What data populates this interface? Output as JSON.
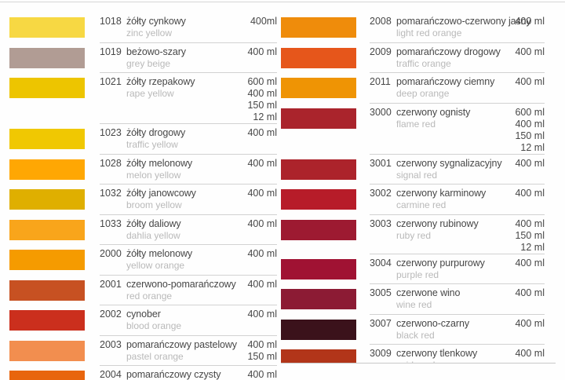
{
  "colors": {
    "divider": "#d2d2d2",
    "top_line": "#d6d6d6",
    "bottom_line": "#c8c8c8",
    "text_dark": "#474747",
    "text_light": "#b9b9b9"
  },
  "left_rows": [
    {
      "code": "1018",
      "name_pl": "żółty cynkowy",
      "name_en": "zinc yellow",
      "volumes": [
        "400ml"
      ],
      "swatch": "#F7D843"
    },
    {
      "code": "1019",
      "name_pl": "beżowo-szary",
      "name_en": "grey beige",
      "volumes": [
        "400 ml"
      ],
      "swatch": "#B19C94"
    },
    {
      "code": "1021",
      "name_pl": "żółty rzepakowy",
      "name_en": "rape yellow",
      "volumes": [
        "600 ml",
        "400 ml",
        "150 ml",
        "12 ml"
      ],
      "swatch": "#EDC500"
    },
    {
      "code": "1023",
      "name_pl": "żółty drogowy",
      "name_en": "traffic yellow",
      "volumes": [
        "400 ml"
      ],
      "swatch": "#F0C802"
    },
    {
      "code": "1028",
      "name_pl": "żółty melonowy",
      "name_en": "melon yellow",
      "volumes": [
        "400 ml"
      ],
      "swatch": "#FFA703"
    },
    {
      "code": "1032",
      "name_pl": "żółty janowcowy",
      "name_en": "broom yellow",
      "volumes": [
        "400 ml"
      ],
      "swatch": "#DFAF00"
    },
    {
      "code": "1033",
      "name_pl": "żółty daliowy",
      "name_en": "dahlia yellow",
      "volumes": [
        "400 ml"
      ],
      "swatch": "#F9A51B"
    },
    {
      "code": "2000",
      "name_pl": "żółty melonowy",
      "name_en": "yellow orange",
      "volumes": [
        "400 ml"
      ],
      "swatch": "#F59B00"
    },
    {
      "code": "2001",
      "name_pl": "czerwono-pomarańczowy",
      "name_en": "red orange",
      "volumes": [
        "400 ml"
      ],
      "swatch": "#C75122"
    },
    {
      "code": "2002",
      "name_pl": "cynober",
      "name_en": "blood orange",
      "volumes": [
        "400 ml"
      ],
      "swatch": "#CB2F1D"
    },
    {
      "code": "2003",
      "name_pl": "pomarańczowy pastelowy",
      "name_en": "pastel orange",
      "volumes": [
        "400 ml",
        "150 ml"
      ],
      "swatch": "#F28E4F"
    },
    {
      "code": "2004",
      "name_pl": "pomarańczowy czysty",
      "name_en": "",
      "volumes": [
        "400 ml"
      ],
      "swatch": "#E8650D"
    }
  ],
  "right_rows": [
    {
      "code": "2008",
      "name_pl": "pomarańczowo-czerwony jasny",
      "name_en": "light red orange",
      "volumes": [
        "400 ml"
      ],
      "swatch": "#EF8C0B"
    },
    {
      "code": "2009",
      "name_pl": "pomarańczowy drogowy",
      "name_en": "traffic orange",
      "volumes": [
        "400 ml"
      ],
      "swatch": "#E6561B"
    },
    {
      "code": "2011",
      "name_pl": "pomarańczowy ciemny",
      "name_en": "deep orange",
      "volumes": [
        "400 ml"
      ],
      "swatch": "#EF9404"
    },
    {
      "code": "3000",
      "name_pl": "czerwony ognisty",
      "name_en": "flame red",
      "volumes": [
        "600 ml",
        "400 ml",
        "150 ml",
        "12 ml"
      ],
      "swatch": "#AA242C"
    },
    {
      "code": "3001",
      "name_pl": "czerwony sygnalizacyjny",
      "name_en": "signal red",
      "volumes": [
        "400 ml"
      ],
      "swatch": "#AC232B"
    },
    {
      "code": "3002",
      "name_pl": "czerwony karminowy",
      "name_en": "carmine red",
      "volumes": [
        "400 ml"
      ],
      "swatch": "#B71C29"
    },
    {
      "code": "3003",
      "name_pl": "czerwony rubinowy",
      "name_en": "ruby red",
      "volumes": [
        "400 ml",
        "150 ml",
        "12 ml"
      ],
      "swatch": "#9D1A31"
    },
    {
      "code": "3004",
      "name_pl": "czerwony purpurowy",
      "name_en": "purple red",
      "volumes": [
        "400 ml"
      ],
      "swatch": "#A01233"
    },
    {
      "code": "3005",
      "name_pl": "czerwone wino",
      "name_en": "wine red",
      "volumes": [
        "400 ml"
      ],
      "swatch": "#8C1B34"
    },
    {
      "code": "3007",
      "name_pl": "czerwono-czarny",
      "name_en": "black red",
      "volumes": [
        "400 ml"
      ],
      "swatch": "#3B121B"
    },
    {
      "code": "3009",
      "name_pl": "czerwony tlenkowy",
      "name_en": "oxide red",
      "volumes": [
        "400 ml"
      ],
      "swatch": "#B23519"
    }
  ]
}
